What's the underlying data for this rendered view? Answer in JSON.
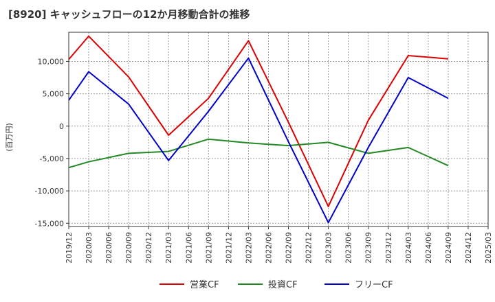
{
  "chart_data": {
    "type": "line",
    "title": "[8920]  キャッシュフローの12か月移動合計の推移",
    "ylabel": "(百万円)",
    "xlabel": "",
    "ylim": [
      -15500,
      14500
    ],
    "y_ticks": [
      10000,
      5000,
      0,
      -5000,
      -10000,
      -15000
    ],
    "y_tick_labels": [
      "10,000",
      "5,000",
      "0",
      "-5,000",
      "-10,000",
      "-15,000"
    ],
    "x_tick_labels": [
      "2019/12",
      "2020/03",
      "2020/06",
      "2020/09",
      "2020/12",
      "2021/03",
      "2021/06",
      "2021/09",
      "2021/12",
      "2022/03",
      "2022/06",
      "2022/09",
      "2022/12",
      "2023/03",
      "2023/06",
      "2023/09",
      "2023/12",
      "2024/03",
      "2024/06",
      "2024/09",
      "2024/12",
      "2025/03"
    ],
    "series": [
      {
        "name": "営業CF",
        "color": "#dd0000",
        "x": [
          "2019/12",
          "2020/03",
          "2020/09",
          "2021/03",
          "2021/09",
          "2022/03",
          "2022/09",
          "2023/03",
          "2023/09",
          "2024/03",
          "2024/09"
        ],
        "values": [
          10300,
          13900,
          7600,
          -1400,
          4300,
          13200,
          600,
          -12400,
          900,
          10900,
          10400
        ]
      },
      {
        "name": "投資CF",
        "color": "#228822",
        "x": [
          "2019/12",
          "2020/03",
          "2020/09",
          "2021/03",
          "2021/09",
          "2022/03",
          "2022/09",
          "2023/03",
          "2023/09",
          "2024/03",
          "2024/09"
        ],
        "values": [
          -6400,
          -5500,
          -4200,
          -3900,
          -2000,
          -2600,
          -3000,
          -2500,
          -4200,
          -3300,
          -6100
        ]
      },
      {
        "name": "フリーCF",
        "color": "#0000cc",
        "x": [
          "2019/12",
          "2020/03",
          "2020/09",
          "2021/03",
          "2021/09",
          "2022/03",
          "2022/09",
          "2023/03",
          "2023/09",
          "2024/03",
          "2024/09"
        ],
        "values": [
          4000,
          8400,
          3400,
          -5300,
          2300,
          10500,
          -2400,
          -14900,
          -3300,
          7500,
          4300
        ]
      }
    ]
  }
}
